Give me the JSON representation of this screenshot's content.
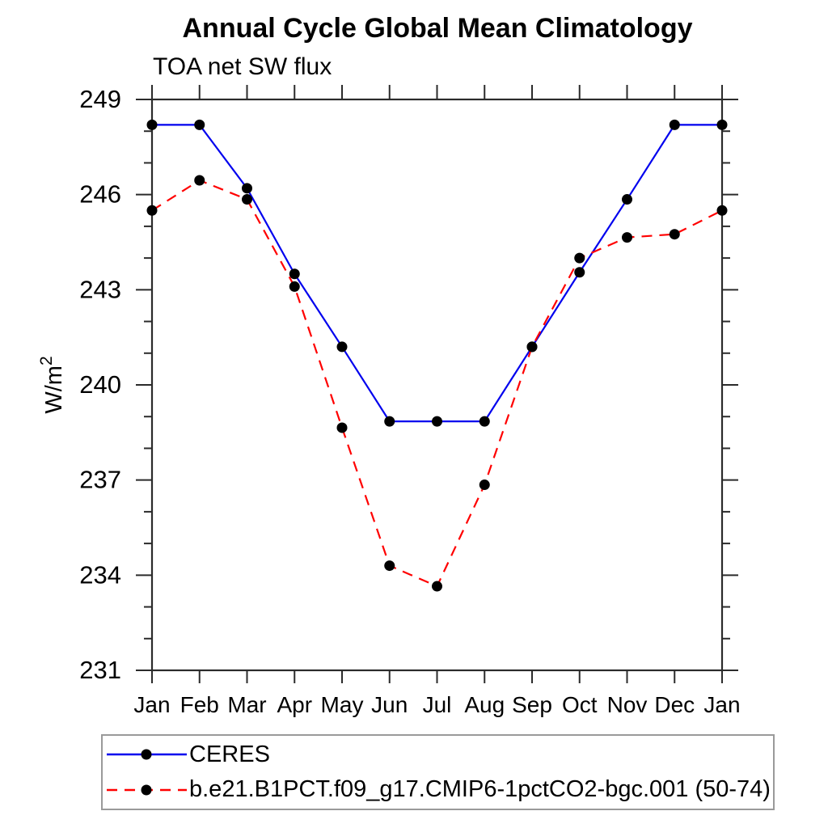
{
  "title": "Annual Cycle Global Mean Climatology",
  "subtitle": "TOA net SW flux",
  "chart_data": {
    "type": "line",
    "x_categories": [
      "Jan",
      "Feb",
      "Mar",
      "Apr",
      "May",
      "Jun",
      "Jul",
      "Aug",
      "Sep",
      "Oct",
      "Nov",
      "Dec",
      "Jan"
    ],
    "ylabel": "W/m",
    "ylabel_superscript": "2",
    "ylim": [
      231,
      249
    ],
    "ytick_major_step": 3,
    "ytick_minor_step": 1,
    "yticks": [
      231,
      234,
      237,
      240,
      243,
      246,
      249
    ],
    "grid": false,
    "legend_position": "bottom",
    "axis_color": "#2b2b2b",
    "marker_color": "#000000",
    "series": [
      {
        "name": "CERES",
        "color": "#0000ee",
        "style": "solid",
        "marker": "circle",
        "values": [
          248.2,
          248.2,
          246.2,
          243.5,
          241.2,
          238.85,
          238.85,
          238.85,
          241.2,
          243.55,
          245.85,
          248.2,
          248.2
        ]
      },
      {
        "name": "b.e21.B1PCT.f09_g17.CMIP6-1pctCO2-bgc.001 (50-74)",
        "color": "#ff0000",
        "style": "dashed",
        "marker": "circle",
        "values": [
          245.5,
          246.45,
          245.85,
          243.1,
          238.65,
          234.3,
          233.65,
          236.85,
          241.2,
          244.0,
          244.65,
          244.75,
          245.5
        ]
      }
    ]
  }
}
